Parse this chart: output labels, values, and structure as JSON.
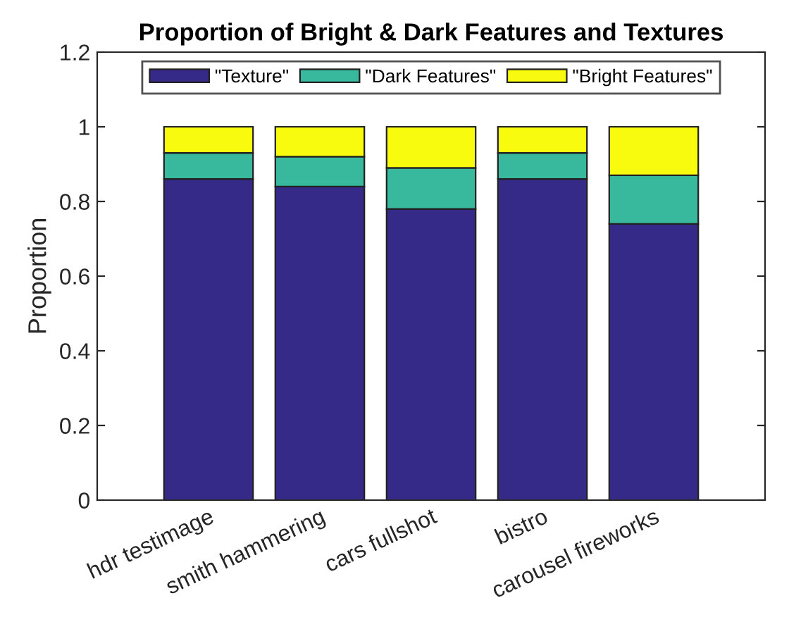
{
  "chart_data": {
    "type": "bar",
    "title": "Proportion of Bright & Dark Features and Textures",
    "ylabel": "Proportion",
    "categories": [
      "hdr testimage",
      "smith hammering",
      "cars fullshot",
      "bistro",
      "carousel fireworks"
    ],
    "stacked": true,
    "series": [
      {
        "name": "\"Texture\"",
        "color": "#352a87",
        "values": [
          0.86,
          0.84,
          0.78,
          0.86,
          0.74
        ]
      },
      {
        "name": "\"Dark Features\"",
        "color": "#38b99e",
        "values": [
          0.07,
          0.08,
          0.11,
          0.07,
          0.13
        ]
      },
      {
        "name": "\"Bright Features\"",
        "color": "#f9fb0e",
        "values": [
          0.07,
          0.08,
          0.11,
          0.07,
          0.13
        ]
      }
    ],
    "ylim": [
      0,
      1.2
    ],
    "yticks": [
      0,
      0.2,
      0.4,
      0.6,
      0.8,
      1,
      1.2
    ],
    "grid": false,
    "legend": "top"
  }
}
